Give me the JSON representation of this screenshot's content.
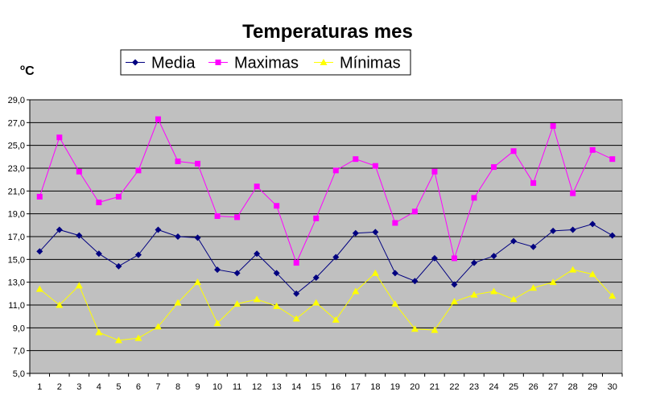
{
  "chart_data": {
    "type": "line",
    "title": "Temperaturas mes",
    "unit_label_sup": "o",
    "unit_label": "C",
    "x": [
      1,
      2,
      3,
      4,
      5,
      6,
      7,
      8,
      9,
      10,
      11,
      12,
      13,
      14,
      15,
      16,
      17,
      18,
      19,
      20,
      21,
      22,
      23,
      24,
      25,
      26,
      27,
      28,
      29,
      30
    ],
    "ylim": [
      5.0,
      29.0
    ],
    "yticks": [
      "5,0",
      "7,0",
      "9,0",
      "11,0",
      "13,0",
      "15,0",
      "17,0",
      "19,0",
      "21,0",
      "23,0",
      "25,0",
      "27,0",
      "29,0"
    ],
    "grid": true,
    "plot_background": "#c0c0c0",
    "legend_position": "top",
    "series": [
      {
        "name": "Media",
        "color": "#000080",
        "marker": "diamond",
        "values": [
          15.7,
          17.6,
          17.1,
          15.5,
          14.4,
          15.4,
          17.6,
          17.0,
          16.9,
          14.1,
          13.8,
          15.5,
          13.8,
          12.0,
          13.4,
          15.2,
          17.3,
          17.4,
          13.8,
          13.1,
          15.1,
          12.8,
          14.7,
          15.3,
          16.6,
          16.1,
          17.5,
          17.6,
          18.1,
          17.1
        ]
      },
      {
        "name": "Maximas",
        "color": "#ff00ff",
        "marker": "square",
        "values": [
          20.5,
          25.7,
          22.7,
          20.0,
          20.5,
          22.8,
          27.3,
          23.6,
          23.4,
          18.8,
          18.7,
          21.4,
          19.7,
          14.7,
          18.6,
          22.8,
          23.8,
          23.2,
          18.2,
          19.2,
          22.7,
          15.1,
          20.4,
          23.1,
          24.5,
          21.7,
          26.7,
          20.8,
          24.6,
          23.8
        ]
      },
      {
        "name": "Mínimas",
        "color": "#ffff00",
        "marker": "triangle",
        "values": [
          12.4,
          11.0,
          12.7,
          8.6,
          7.9,
          8.1,
          9.1,
          11.2,
          13.0,
          9.4,
          11.1,
          11.5,
          10.9,
          9.8,
          11.2,
          9.7,
          12.2,
          13.8,
          11.1,
          8.9,
          8.8,
          11.3,
          11.9,
          12.2,
          11.5,
          12.5,
          13.0,
          14.1,
          13.7,
          11.8
        ]
      }
    ]
  }
}
